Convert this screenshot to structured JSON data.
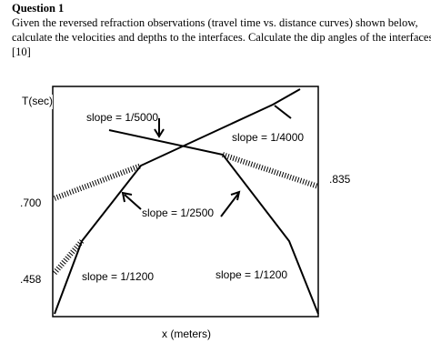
{
  "question": {
    "title": "Question 1",
    "lines": [
      "Given the reversed refraction observations (travel time vs. distance curves) shown below,",
      "calculate the velocities and depths to the interfaces. Calculate the dip angles of the interfaces.",
      "[10]"
    ]
  },
  "diagram": {
    "y_axis_label": "T(sec)",
    "x_axis_label": "x  (meters)",
    "time_labels": [
      ".700",
      ".458",
      ".835"
    ],
    "slopes": [
      "slope  =  1/5000",
      "slope  =  1/4000",
      "slope  =  1/2500",
      "slope  =  1/1200",
      "slope  =  1/1200"
    ]
  }
}
